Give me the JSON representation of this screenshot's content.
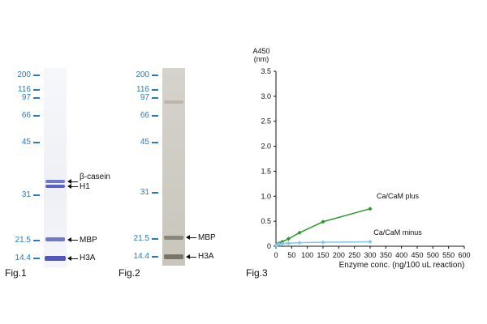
{
  "fig1": {
    "label": "Fig.1",
    "markers": [
      "200",
      "116",
      "97",
      "66",
      "45",
      "31",
      "21.5",
      "14.4"
    ],
    "bands": [
      "β-casein",
      "H1",
      "MBP",
      "H3A"
    ]
  },
  "fig2": {
    "label": "Fig.2",
    "markers": [
      "200",
      "116",
      "97",
      "66",
      "45",
      "31",
      "21.5",
      "14.4"
    ],
    "bands": [
      "MBP",
      "H3A"
    ]
  },
  "fig3": {
    "label": "Fig.3",
    "chart_data": {
      "type": "line",
      "title": "",
      "ylabel": "A450 (nm)",
      "ylabel_line1": "A450",
      "ylabel_line2": "(nm)",
      "xlabel": "Enzyme conc. (ng/100 uL reaction)",
      "xlim": [
        0,
        600
      ],
      "ylim": [
        0,
        3.5
      ],
      "xticks": [
        "0",
        "50",
        "100",
        "150",
        "200",
        "250",
        "300",
        "350",
        "400",
        "450",
        "500",
        "550",
        "600"
      ],
      "yticks": [
        "0",
        "0.5",
        "1.0",
        "1.5",
        "2.0",
        "2.5",
        "3.0",
        "3.5"
      ],
      "series": [
        {
          "name": "Ca/CaM plus",
          "color": "#2e9a2e",
          "x": [
            0,
            5,
            10,
            20,
            40,
            75,
            150,
            300
          ],
          "y": [
            0.02,
            0.04,
            0.06,
            0.09,
            0.15,
            0.27,
            0.49,
            0.75
          ]
        },
        {
          "name": "Ca/CaM minus",
          "color": "#7ec8e8",
          "x": [
            0,
            5,
            10,
            20,
            40,
            75,
            150,
            300
          ],
          "y": [
            0.02,
            0.03,
            0.04,
            0.05,
            0.06,
            0.07,
            0.08,
            0.09
          ]
        }
      ]
    }
  }
}
